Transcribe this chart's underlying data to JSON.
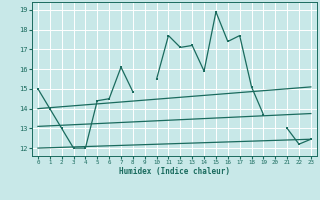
{
  "x": [
    0,
    1,
    2,
    3,
    4,
    5,
    6,
    7,
    8,
    9,
    10,
    11,
    12,
    13,
    14,
    15,
    16,
    17,
    18,
    19,
    20,
    21,
    22,
    23
  ],
  "main_line": [
    15,
    14,
    13,
    12,
    12,
    14.4,
    14.5,
    16.1,
    14.85,
    null,
    15.5,
    17.7,
    17.1,
    17.2,
    15.9,
    18.9,
    17.4,
    17.7,
    15.1,
    13.7,
    null,
    13.0,
    12.2,
    12.45
  ],
  "trend1_x": [
    0,
    23
  ],
  "trend1_y": [
    14.0,
    15.1
  ],
  "trend2_x": [
    0,
    23
  ],
  "trend2_y": [
    13.1,
    13.75
  ],
  "trend3_x": [
    0,
    23
  ],
  "trend3_y": [
    12.0,
    12.45
  ],
  "ylim": [
    11.6,
    19.4
  ],
  "xlim": [
    -0.5,
    23.5
  ],
  "yticks": [
    12,
    13,
    14,
    15,
    16,
    17,
    18,
    19
  ],
  "xticks": [
    0,
    1,
    2,
    3,
    4,
    5,
    6,
    7,
    8,
    9,
    10,
    11,
    12,
    13,
    14,
    15,
    16,
    17,
    18,
    19,
    20,
    21,
    22,
    23
  ],
  "xlabel": "Humidex (Indice chaleur)",
  "line_color": "#1a6b5e",
  "bg_color": "#c8e8e8",
  "grid_color": "#ffffff",
  "font_color": "#1a6b5e"
}
